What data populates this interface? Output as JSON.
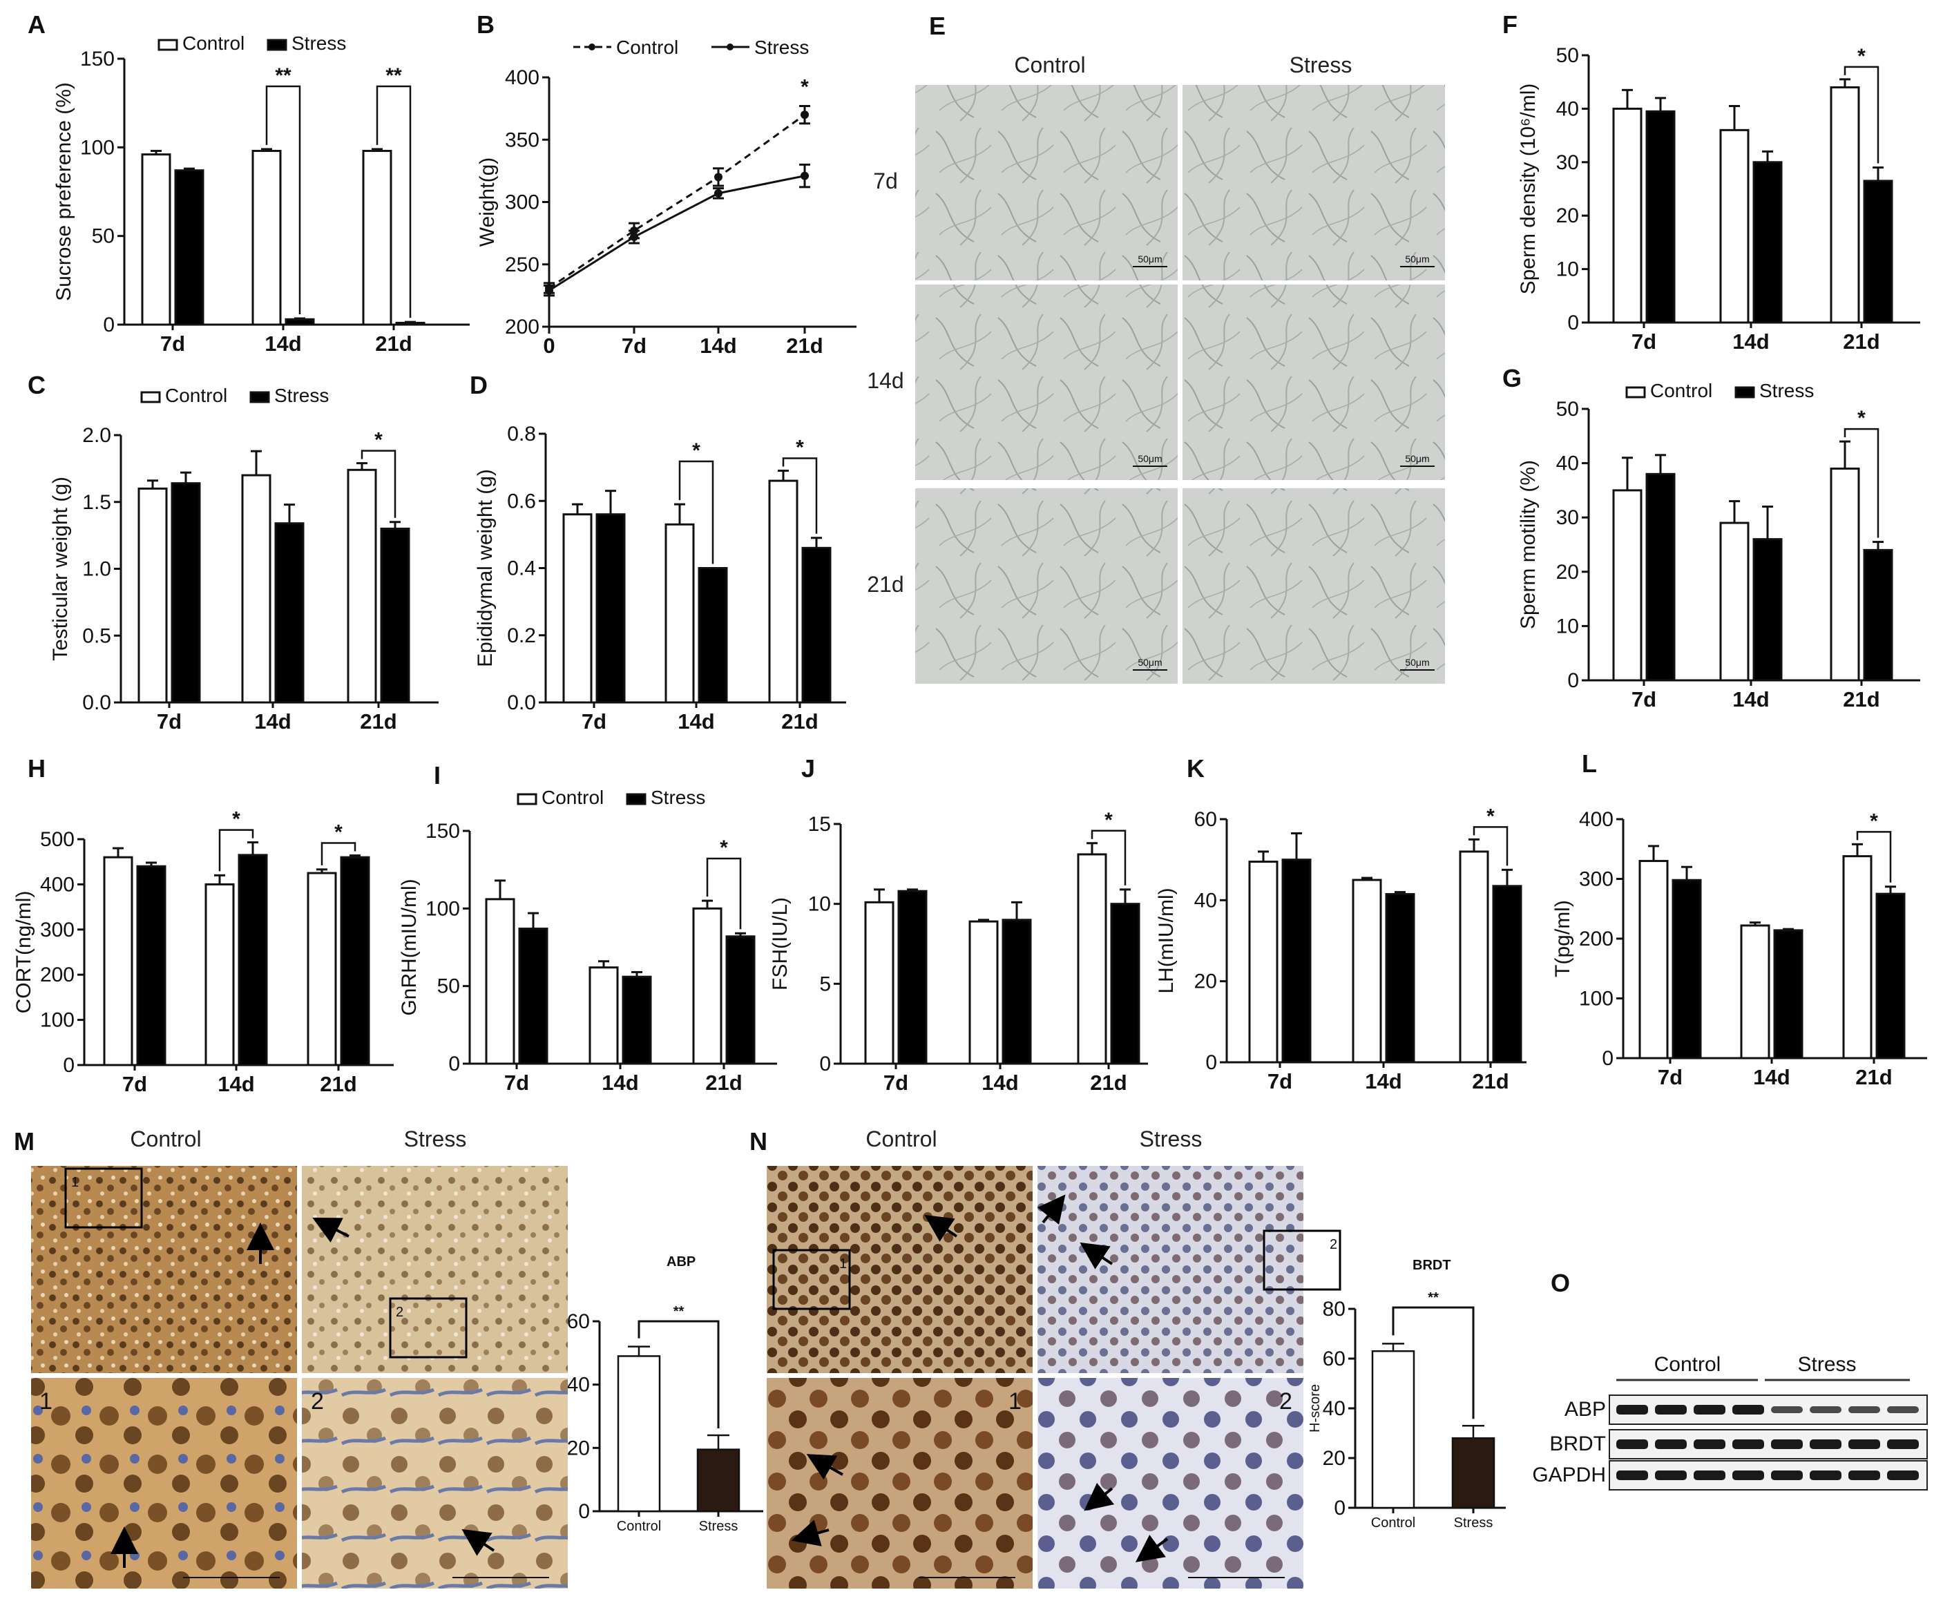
{
  "colors": {
    "control": "#ffffff",
    "stress": "#000000",
    "axis": "#111111",
    "ihc_dark": "#2b1a12"
  },
  "legend": {
    "control": "Control",
    "stress": "Stress"
  },
  "micro": {
    "E": {
      "label": "E",
      "cols": [
        "Control",
        "Stress"
      ],
      "rows": [
        "7d",
        "14d",
        "21d"
      ],
      "scale": "50μm"
    },
    "M": {
      "label": "M",
      "cols": [
        "Control",
        "Stress"
      ],
      "insets": [
        "1",
        "2"
      ],
      "box_nums": [
        "1",
        "2"
      ]
    },
    "N": {
      "label": "N",
      "cols": [
        "Control",
        "Stress"
      ],
      "insets": [
        "1",
        "2"
      ],
      "box_nums": [
        "1",
        "2"
      ]
    }
  },
  "western": {
    "label": "O",
    "groups": [
      "Control",
      "Stress"
    ],
    "rows": [
      "ABP",
      "BRDT",
      "GAPDH"
    ]
  },
  "chart_data": [
    {
      "id": "A",
      "type": "bar",
      "ylabel": "Sucrose preference (%)",
      "categories": [
        "7d",
        "14d",
        "21d"
      ],
      "ylim": [
        0,
        150
      ],
      "yticks": [
        0,
        50,
        100,
        150
      ],
      "legend": true,
      "series": [
        {
          "name": "Control",
          "values": [
            96,
            98,
            98
          ],
          "err": [
            2,
            1,
            1
          ]
        },
        {
          "name": "Stress",
          "values": [
            87,
            3,
            1
          ],
          "err": [
            1,
            0.5,
            0.5
          ]
        }
      ],
      "sig": [
        {
          "cat": 1,
          "text": "**"
        },
        {
          "cat": 2,
          "text": "**"
        }
      ]
    },
    {
      "id": "B",
      "type": "line",
      "ylabel": "Weight(g)",
      "categories": [
        "0",
        "7d",
        "14d",
        "21d"
      ],
      "ylim": [
        200,
        400
      ],
      "yticks": [
        200,
        250,
        300,
        350,
        400
      ],
      "series": [
        {
          "name": "Control",
          "values": [
            231,
            277,
            320,
            370
          ],
          "err": [
            4,
            6,
            7,
            7
          ],
          "dashed": true
        },
        {
          "name": "Stress",
          "values": [
            229,
            272,
            307,
            321
          ],
          "err": [
            4,
            5,
            4,
            9
          ],
          "dashed": false
        }
      ],
      "sig": [
        {
          "cat": 3,
          "text": "*"
        }
      ]
    },
    {
      "id": "C",
      "type": "bar",
      "ylabel": "Testicular weight (g)",
      "categories": [
        "7d",
        "14d",
        "21d"
      ],
      "ylim": [
        0,
        2.0
      ],
      "yticks": [
        "0.0",
        "0.5",
        "1.0",
        "1.5",
        "2.0"
      ],
      "legend": true,
      "series": [
        {
          "name": "Control",
          "values": [
            1.6,
            1.7,
            1.74
          ],
          "err": [
            0.06,
            0.18,
            0.05
          ]
        },
        {
          "name": "Stress",
          "values": [
            1.64,
            1.34,
            1.3
          ],
          "err": [
            0.08,
            0.14,
            0.05
          ]
        }
      ],
      "sig": [
        {
          "cat": 2,
          "text": "*"
        }
      ]
    },
    {
      "id": "D",
      "type": "bar",
      "ylabel": "Epididymal weight (g)",
      "categories": [
        "7d",
        "14d",
        "21d"
      ],
      "ylim": [
        0,
        0.8
      ],
      "yticks": [
        "0.0",
        "0.2",
        "0.4",
        "0.6",
        "0.8"
      ],
      "series": [
        {
          "name": "Control",
          "values": [
            0.56,
            0.53,
            0.66
          ],
          "err": [
            0.03,
            0.06,
            0.03
          ]
        },
        {
          "name": "Stress",
          "values": [
            0.56,
            0.4,
            0.46
          ],
          "err": [
            0.07,
            0.0,
            0.03
          ]
        }
      ],
      "sig": [
        {
          "cat": 1,
          "text": "*"
        },
        {
          "cat": 2,
          "text": "*"
        }
      ]
    },
    {
      "id": "F",
      "type": "bar",
      "ylabel": "Sperm density (10⁶/ml)",
      "categories": [
        "7d",
        "14d",
        "21d"
      ],
      "ylim": [
        0,
        50
      ],
      "yticks": [
        0,
        10,
        20,
        30,
        40,
        50
      ],
      "series": [
        {
          "name": "Control",
          "values": [
            40,
            36,
            44
          ],
          "err": [
            3.5,
            4.5,
            1.5
          ]
        },
        {
          "name": "Stress",
          "values": [
            39.5,
            30,
            26.5
          ],
          "err": [
            2.5,
            2,
            2.5
          ]
        }
      ],
      "sig": [
        {
          "cat": 2,
          "text": "*"
        }
      ]
    },
    {
      "id": "G",
      "type": "bar",
      "ylabel": "Sperm motility (%)",
      "categories": [
        "7d",
        "14d",
        "21d"
      ],
      "ylim": [
        0,
        50
      ],
      "yticks": [
        0,
        10,
        20,
        30,
        40,
        50
      ],
      "legend": true,
      "series": [
        {
          "name": "Control",
          "values": [
            35,
            29,
            39
          ],
          "err": [
            6,
            4,
            5
          ]
        },
        {
          "name": "Stress",
          "values": [
            38,
            26,
            24
          ],
          "err": [
            3.5,
            6,
            1.5
          ]
        }
      ],
      "sig": [
        {
          "cat": 2,
          "text": "*"
        }
      ]
    },
    {
      "id": "H",
      "type": "bar",
      "ylabel": "CORT(ng/ml)",
      "categories": [
        "7d",
        "14d",
        "21d"
      ],
      "ylim": [
        0,
        500
      ],
      "yticks": [
        0,
        100,
        200,
        300,
        400,
        500
      ],
      "series": [
        {
          "name": "Control",
          "values": [
            460,
            400,
            425
          ],
          "err": [
            20,
            20,
            8
          ]
        },
        {
          "name": "Stress",
          "values": [
            440,
            465,
            460
          ],
          "err": [
            8,
            28,
            4
          ]
        }
      ],
      "sig": [
        {
          "cat": 1,
          "text": "*"
        },
        {
          "cat": 2,
          "text": "*"
        }
      ]
    },
    {
      "id": "I",
      "type": "bar",
      "ylabel": "GnRH(mIU/ml)",
      "categories": [
        "7d",
        "14d",
        "21d"
      ],
      "ylim": [
        0,
        150
      ],
      "yticks": [
        0,
        50,
        100,
        150
      ],
      "legend": true,
      "series": [
        {
          "name": "Control",
          "values": [
            106,
            62,
            100
          ],
          "err": [
            12,
            4,
            5
          ]
        },
        {
          "name": "Stress",
          "values": [
            87,
            56,
            82
          ],
          "err": [
            10,
            3,
            2
          ]
        }
      ],
      "sig": [
        {
          "cat": 2,
          "text": "*"
        }
      ]
    },
    {
      "id": "J",
      "type": "bar",
      "ylabel": "FSH(IU/L)",
      "categories": [
        "7d",
        "14d",
        "21d"
      ],
      "ylim": [
        0,
        15
      ],
      "yticks": [
        0,
        5,
        10,
        15
      ],
      "series": [
        {
          "name": "Control",
          "values": [
            10.1,
            8.9,
            13.1
          ],
          "err": [
            0.8,
            0.1,
            0.7
          ]
        },
        {
          "name": "Stress",
          "values": [
            10.8,
            9.0,
            10.0
          ],
          "err": [
            0.1,
            1.1,
            0.9
          ]
        }
      ],
      "sig": [
        {
          "cat": 2,
          "text": "*"
        }
      ]
    },
    {
      "id": "K",
      "type": "bar",
      "ylabel": "LH(mIU/ml)",
      "categories": [
        "7d",
        "14d",
        "21d"
      ],
      "ylim": [
        0,
        60
      ],
      "yticks": [
        0,
        20,
        40,
        60
      ],
      "series": [
        {
          "name": "Control",
          "values": [
            49.5,
            45,
            52
          ],
          "err": [
            2.5,
            0.5,
            3
          ]
        },
        {
          "name": "Stress",
          "values": [
            50,
            41.5,
            43.5
          ],
          "err": [
            6.5,
            0.5,
            4
          ]
        }
      ],
      "sig": [
        {
          "cat": 2,
          "text": "*"
        }
      ]
    },
    {
      "id": "L",
      "type": "bar",
      "ylabel": "T(pg/ml)",
      "categories": [
        "7d",
        "14d",
        "21d"
      ],
      "ylim": [
        0,
        400
      ],
      "yticks": [
        0,
        100,
        200,
        300,
        400
      ],
      "series": [
        {
          "name": "Control",
          "values": [
            330,
            222,
            338
          ],
          "err": [
            25,
            5,
            20
          ]
        },
        {
          "name": "Stress",
          "values": [
            298,
            214,
            275
          ],
          "err": [
            22,
            2,
            12
          ]
        }
      ],
      "sig": [
        {
          "cat": 2,
          "text": "*"
        }
      ]
    },
    {
      "id": "M-ABP",
      "type": "bar",
      "title": "ABP",
      "ylabel": "H-score",
      "categories": [
        "Control",
        "Stress"
      ],
      "ylim": [
        0,
        60
      ],
      "yticks": [
        0,
        20,
        40,
        60
      ],
      "values": [
        49,
        19.5
      ],
      "err": [
        3,
        4.5
      ],
      "colors": [
        "#ffffff",
        "#2b1a12"
      ],
      "sig": "**"
    },
    {
      "id": "N-BRDT",
      "type": "bar",
      "title": "BRDT",
      "ylabel": "H-score",
      "categories": [
        "Control",
        "Stress"
      ],
      "ylim": [
        0,
        80
      ],
      "yticks": [
        0,
        20,
        40,
        60,
        80
      ],
      "values": [
        63,
        28
      ],
      "err": [
        3,
        5
      ],
      "colors": [
        "#ffffff",
        "#2b1a12"
      ],
      "sig": "**"
    }
  ]
}
